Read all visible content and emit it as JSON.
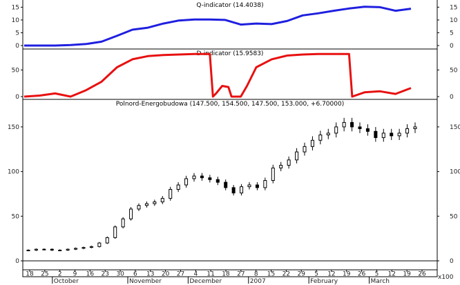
{
  "chart_data": [
    {
      "type": "line",
      "title": "Q-indicator (14.4038)",
      "ylim": [
        0,
        17
      ],
      "yticks": [
        0,
        5,
        10,
        15
      ],
      "color": "#1f1fe0",
      "x": [
        0,
        5,
        10,
        15,
        20,
        25,
        30,
        35,
        40,
        45,
        50,
        55,
        60,
        65,
        70,
        75,
        80,
        85,
        90,
        95,
        100,
        105,
        110,
        115,
        120,
        125
      ],
      "values": [
        0,
        0,
        0,
        0.2,
        0.6,
        1.5,
        3.8,
        6.2,
        7.0,
        8.6,
        9.8,
        10.2,
        10.2,
        10.0,
        8.2,
        8.6,
        8.4,
        9.6,
        11.8,
        12.6,
        13.6,
        14.5,
        15.2,
        15.0,
        13.6,
        14.4
      ]
    },
    {
      "type": "line",
      "title": "D-indicator (15.9583)",
      "ylim": [
        0,
        88
      ],
      "yticks": [
        0,
        50
      ],
      "color": "#e81010",
      "x": [
        0,
        5,
        10,
        15,
        20,
        25,
        30,
        35,
        40,
        45,
        50,
        55,
        60,
        61,
        62,
        64,
        66,
        67,
        68,
        70,
        72,
        75,
        80,
        85,
        90,
        95,
        100,
        105,
        106,
        110,
        115,
        120,
        125
      ],
      "values": [
        0,
        2,
        6,
        0,
        12,
        28,
        55,
        70,
        76,
        78,
        79,
        80,
        80,
        0,
        6,
        20,
        18,
        0,
        0,
        0,
        20,
        55,
        70,
        77,
        79,
        80,
        80,
        80,
        0,
        8,
        10,
        5,
        16
      ]
    },
    {
      "type": "candlestick",
      "title": "Polnord-Energobudowa (147.500, 154.500, 147.500, 153.000, +6.70000)",
      "ylim": [
        0,
        170
      ],
      "yticks": [
        0,
        50,
        100,
        150
      ],
      "x_tick_labels": [
        "18",
        "25",
        "2",
        "9",
        "16",
        "23",
        "30",
        "6",
        "13",
        "20",
        "27",
        "4",
        "11",
        "18",
        "27",
        "8",
        "15",
        "22",
        "29",
        "5",
        "12",
        "19",
        "26",
        "5",
        "12",
        "19",
        "26"
      ],
      "months": [
        "October",
        "November",
        "December",
        "2007",
        "February",
        "March"
      ],
      "close": [
        12,
        13,
        13,
        12,
        12,
        13,
        14,
        15,
        16,
        20,
        26,
        38,
        47,
        58,
        62,
        64,
        66,
        70,
        80,
        85,
        92,
        95,
        93,
        91,
        88,
        82,
        76,
        83,
        85,
        82,
        90,
        104,
        107,
        113,
        122,
        128,
        135,
        141,
        143,
        150,
        155,
        150,
        148,
        145,
        138,
        143,
        140,
        143,
        148,
        150
      ],
      "axis_note": "x100"
    }
  ]
}
